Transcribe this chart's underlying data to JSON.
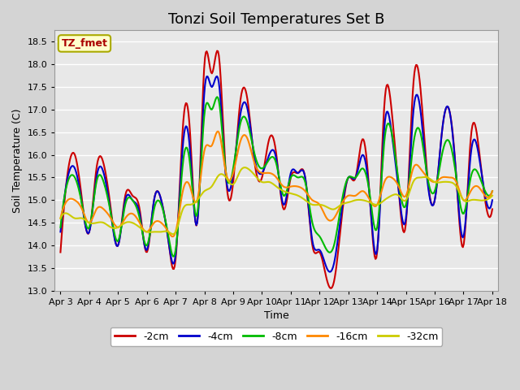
{
  "title": "Tonzi Soil Temperatures Set B",
  "xlabel": "Time",
  "ylabel": "Soil Temperature (C)",
  "ylim": [
    13.0,
    18.75
  ],
  "yticks": [
    13.0,
    13.5,
    14.0,
    14.5,
    15.0,
    15.5,
    16.0,
    16.5,
    17.0,
    17.5,
    18.0,
    18.5
  ],
  "xtick_labels": [
    "Apr 3",
    "Apr 4",
    "Apr 5",
    "Apr 6",
    "Apr 7",
    "Apr 8",
    "Apr 9",
    "Apr 10",
    "Apr 11",
    "Apr 12",
    "Apr 13",
    "Apr 14",
    "Apr 15",
    "Apr 16",
    "Apr 17",
    "Apr 18"
  ],
  "series_colors": [
    "#cc0000",
    "#0000cc",
    "#00bb00",
    "#ff8800",
    "#cccc00"
  ],
  "series_labels": [
    "-2cm",
    "-4cm",
    "-8cm",
    "-16cm",
    "-32cm"
  ],
  "legend_label": "TZ_fmet",
  "legend_bg": "#ffffcc",
  "legend_edge": "#aaaa00",
  "legend_text_color": "#aa0000",
  "plot_bg_color": "#e8e8e8",
  "fig_bg_color": "#d4d4d4",
  "grid_color": "#ffffff",
  "title_fontsize": 13,
  "axis_fontsize": 9,
  "tick_fontsize": 8
}
